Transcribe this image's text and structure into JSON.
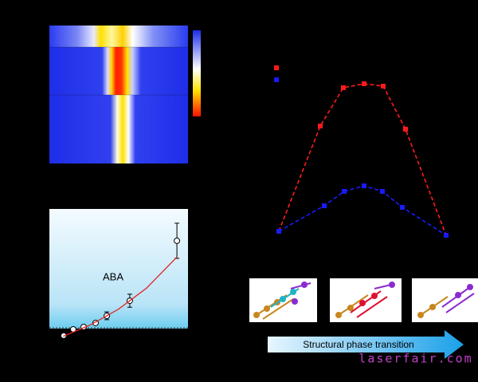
{
  "chart_data": [
    {
      "type": "scatter",
      "annotation": "ABA",
      "xlim": [
        0,
        10
      ],
      "ylim": [
        0,
        10
      ],
      "series": [
        {
          "color": "#ffffff",
          "x": [
            1.03,
            1.72,
            2.47,
            3.33,
            4.14,
            5.8,
            9.2
          ],
          "values": [
            0.25,
            0.74,
            0.92,
            1.23,
            1.78,
            2.94,
            7.55
          ],
          "errors": [
            0,
            0,
            0,
            0,
            0.3,
            0.5,
            1.35
          ]
        },
        {
          "color": "#e02020",
          "x": [
            1,
            3,
            5,
            7,
            9.2
          ],
          "values": [
            0.2,
            1.1,
            2.3,
            3.9,
            6.3
          ]
        }
      ]
    },
    {
      "type": "line",
      "xlim": [
        0,
        210
      ],
      "ylim": [
        0,
        100
      ],
      "series": [
        {
          "color": "#ff1a1a",
          "x": [
            0,
            52,
            81,
            107,
            131,
            159,
            210
          ],
          "values": [
            5,
            71,
            95,
            97.5,
            96,
            69,
            2.5
          ]
        },
        {
          "color": "#1a1aff",
          "x": [
            0,
            57,
            82,
            107,
            130,
            155,
            210
          ],
          "values": [
            5,
            21,
            30,
            33.5,
            30,
            20,
            2.5
          ]
        }
      ]
    }
  ],
  "caption": "Structural phase transition",
  "watermark": "laserfair.com"
}
